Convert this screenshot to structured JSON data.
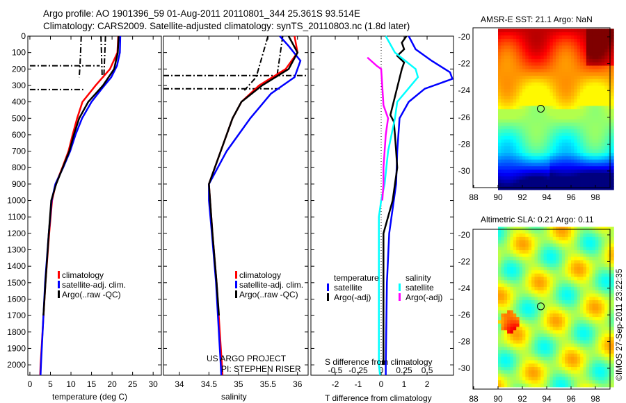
{
  "header": {
    "line1": "Argo profile: AO 1901396_59 01-Aug-2011 20110801_344 25.361S 93.514E",
    "line2": "Climatology: CARS2009. Satellite-adjusted climatology: synTS_20110803.nc (1.8d later)"
  },
  "credit": "©IMOS 27-Sep-2011 23:22:35",
  "chart_data": [
    {
      "type": "line",
      "id": "temperature",
      "xlabel": "temperature (deg C)",
      "ylabel": "",
      "xlim": [
        -0.5,
        32
      ],
      "ylim": [
        2063,
        0
      ],
      "xticks": [
        0,
        5,
        10,
        15,
        20,
        25,
        30
      ],
      "yticks": [
        0,
        100,
        200,
        300,
        400,
        500,
        600,
        700,
        800,
        900,
        1000,
        1100,
        1200,
        1300,
        1400,
        1500,
        1600,
        1700,
        1800,
        1900,
        2000
      ],
      "legend": [
        "climatology",
        "satellite-adj. clim.",
        "Argo(..raw -QC)"
      ],
      "series": [
        {
          "name": "climatology",
          "color": "#ff0000",
          "depth": [
            0,
            100,
            200,
            300,
            400,
            500,
            600,
            700,
            800,
            900,
            1000,
            1200,
            1500,
            2000,
            2063
          ],
          "values": [
            21.5,
            21.3,
            19.5,
            16,
            12.8,
            11.5,
            10.4,
            9.4,
            7.9,
            6.3,
            5.4,
            4.7,
            3.8,
            2.6,
            2.5
          ]
        },
        {
          "name": "satellite-adj. clim.",
          "color": "#0000ff",
          "depth": [
            0,
            100,
            180,
            250,
            320,
            400,
            500,
            600,
            700,
            800,
            900,
            1000,
            1200,
            1500,
            2000,
            2063
          ],
          "values": [
            22,
            21.9,
            21.2,
            19.8,
            17.5,
            15,
            12.7,
            11.1,
            9.8,
            8.1,
            6.2,
            5.3,
            4.6,
            3.7,
            2.7,
            2.6
          ]
        },
        {
          "name": "Argo(..raw -QC)",
          "color": "#000000",
          "depth": [
            0,
            100,
            200,
            300,
            400,
            500,
            600,
            700,
            800,
            900,
            1000,
            1200,
            1500,
            1700
          ],
          "values": [
            21.6,
            21.4,
            20.5,
            17.8,
            14.2,
            12,
            10.7,
            9.6,
            8,
            6.4,
            5.2,
            4.6,
            3.8,
            3.3
          ]
        }
      ],
      "raw_segments": [
        {
          "depth": [
            0,
            180,
            250
          ],
          "values": [
            12.5,
            12.2,
            12
          ]
        },
        {
          "depth": [
            0,
            250
          ],
          "values": [
            17.3,
            17.6
          ]
        },
        {
          "depth": [
            0,
            250
          ],
          "values": [
            18.4,
            18
          ]
        },
        {
          "depth": [
            180,
            180
          ],
          "values": [
            0,
            17
          ]
        },
        {
          "depth": [
            325,
            325
          ],
          "values": [
            0,
            13
          ]
        }
      ]
    },
    {
      "type": "line",
      "id": "salinity",
      "xlabel": "salinity",
      "xlim": [
        33.73,
        36.18
      ],
      "ylim": [
        2063,
        0
      ],
      "xticks": [
        34,
        34.5,
        35,
        35.5,
        36
      ],
      "legend": [
        "climatology",
        "satellite-adj. clim.",
        "Argo(..raw -QC)"
      ],
      "annotation": [
        "US ARGO PROJECT",
        "PI: STEPHEN RISER"
      ],
      "series": [
        {
          "name": "climatology",
          "color": "#ff0000",
          "depth": [
            0,
            100,
            200,
            300,
            400,
            500,
            700,
            900,
            1000,
            1200,
            1500,
            2000,
            2063
          ],
          "values": [
            35.95,
            36.0,
            35.8,
            35.35,
            35.05,
            34.9,
            34.7,
            34.5,
            34.52,
            34.56,
            34.63,
            34.72,
            34.73
          ]
        },
        {
          "name": "satellite-adj. clim.",
          "color": "#0000ff",
          "depth": [
            0,
            60,
            150,
            250,
            350,
            500,
            700,
            900,
            1000,
            1200,
            1500,
            2000,
            2063
          ],
          "values": [
            35.7,
            35.85,
            36.05,
            35.95,
            35.55,
            35.2,
            34.8,
            34.5,
            34.5,
            34.55,
            34.62,
            34.7,
            34.71
          ]
        },
        {
          "name": "Argo(..raw -QC)",
          "color": "#000000",
          "depth": [
            0,
            100,
            200,
            300,
            400,
            500,
            700,
            900,
            1000,
            1200,
            1500,
            1700
          ],
          "values": [
            35.85,
            36.0,
            35.85,
            35.4,
            35.05,
            34.9,
            34.7,
            34.5,
            34.52,
            34.56,
            34.63,
            34.67
          ]
        }
      ],
      "raw_segments": [
        {
          "depth": [
            0,
            250,
            330
          ],
          "values": [
            35.5,
            35.3,
            35.1
          ]
        },
        {
          "depth": [
            0,
            250
          ],
          "values": [
            35.75,
            35.65
          ]
        },
        {
          "depth": [
            240,
            240
          ],
          "values": [
            33.73,
            36.18
          ]
        },
        {
          "depth": [
            320,
            320
          ],
          "values": [
            33.73,
            35.7
          ]
        }
      ]
    },
    {
      "type": "line",
      "id": "difference",
      "xlabel": "T difference from climatology",
      "x2label": "S difference from climatology",
      "xlim": [
        -3.06,
        3.15
      ],
      "ylim": [
        2063,
        0
      ],
      "xticks": [
        -2,
        -1,
        0,
        1,
        2
      ],
      "x2ticks": [
        -0.5,
        -0.25,
        0,
        0.25,
        0.5
      ],
      "x2ticklabels": [
        "-0.5",
        "-0.25",
        "0",
        "0.25",
        "0.5"
      ],
      "legend_groups": [
        {
          "title": "temperature",
          "items": [
            "satellite",
            "Argo(-adj)"
          ]
        },
        {
          "title": "salinity",
          "items": [
            "satellite",
            "Argo(-adj)"
          ]
        }
      ],
      "series": [
        {
          "name": "temperature satellite",
          "color": "#0000ff",
          "depth": [
            0,
            80,
            150,
            220,
            260,
            320,
            400,
            500,
            700,
            900,
            1100,
            1200,
            1500,
            2000,
            2063
          ],
          "values": [
            1.2,
            1.5,
            2.2,
            3.0,
            3.1,
            1.9,
            1.2,
            0.8,
            0.7,
            0.65,
            0.45,
            0.35,
            0.25,
            0.2,
            0.2
          ]
        },
        {
          "name": "temperature Argo(-adj)",
          "color": "#000000",
          "depth": [
            0,
            40,
            80,
            120,
            160,
            200,
            480,
            520,
            600,
            700,
            800,
            900,
            1000,
            1100,
            1200,
            1500,
            2000
          ],
          "values": [
            1.1,
            0.9,
            1.0,
            0.7,
            1.0,
            0.9,
            0.4,
            0.55,
            0.6,
            0.65,
            0.7,
            0.6,
            0.5,
            0.3,
            0.1,
            0.1,
            0.1
          ]
        },
        {
          "name": "salinity satellite",
          "color": "#00ffff",
          "depth": [
            0,
            100,
            200,
            250,
            300,
            400,
            500,
            700,
            900,
            1000,
            1100,
            1500,
            2000,
            2063
          ],
          "values": [
            0.2,
            0.6,
            1.5,
            1.6,
            1.3,
            0.7,
            0.6,
            0.3,
            0.15,
            0.0,
            -0.1,
            -0.1,
            -0.1,
            -0.05
          ]
        },
        {
          "name": "salinity Argo(-adj)",
          "color": "#ff00ff",
          "depth": [
            130,
            180,
            200,
            420,
            500,
            600,
            700,
            800,
            900,
            1000
          ],
          "values": [
            -0.6,
            -0.2,
            0.0,
            0.1,
            0.3,
            0.2,
            0.15,
            0.1,
            0.1,
            0.05
          ]
        }
      ]
    },
    {
      "type": "heatmap",
      "id": "sst-map",
      "title": "AMSR-E SST: 21.1 Argo: NaN",
      "xticks": [
        88,
        90,
        92,
        94,
        96,
        98
      ],
      "yticks": [
        -20,
        -22,
        -24,
        -26,
        -28,
        -30
      ],
      "marker": {
        "lon": 93.514,
        "lat": -25.361
      }
    },
    {
      "type": "heatmap",
      "id": "sla-map",
      "title": "Altimetric SLA: 0.21 Argo: 0.11",
      "xticks": [
        88,
        90,
        92,
        94,
        96,
        98
      ],
      "yticks": [
        -20,
        -22,
        -24,
        -26,
        -28,
        -30
      ],
      "marker": {
        "lon": 93.514,
        "lat": -25.361
      }
    }
  ]
}
